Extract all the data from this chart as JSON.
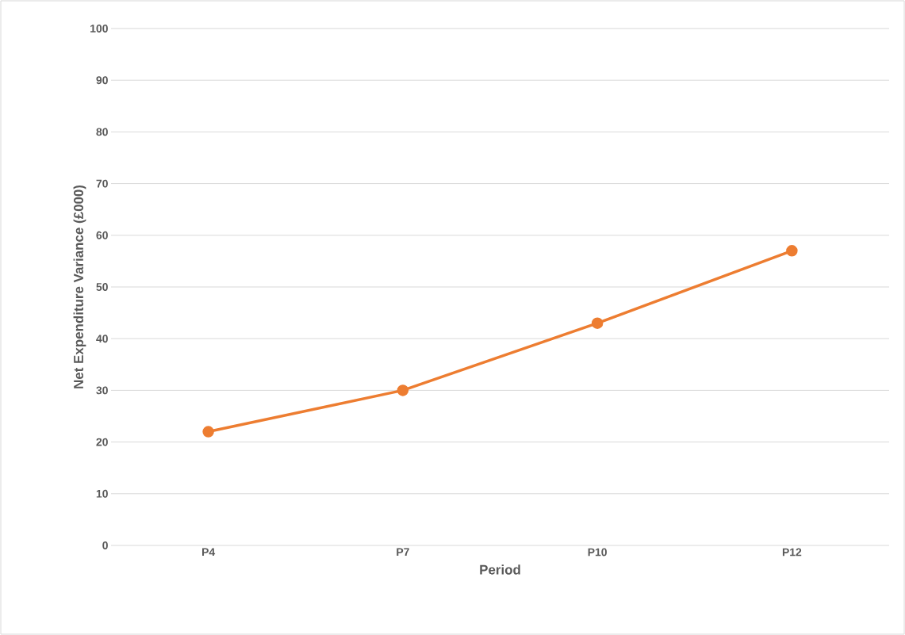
{
  "chart_data": {
    "type": "line",
    "xlabel": "Period",
    "ylabel": "Net Expenditure Variance (£000)",
    "categories": [
      "P4",
      "P7",
      "P10",
      "P12"
    ],
    "series": [
      {
        "color": "#ed7d31",
        "values": [
          22,
          30,
          43,
          57
        ]
      }
    ],
    "ylim": [
      0,
      100
    ],
    "yticks": [
      0,
      10,
      20,
      30,
      40,
      50,
      60,
      70,
      80,
      90,
      100
    ],
    "grid": "y",
    "marker": "circle"
  }
}
